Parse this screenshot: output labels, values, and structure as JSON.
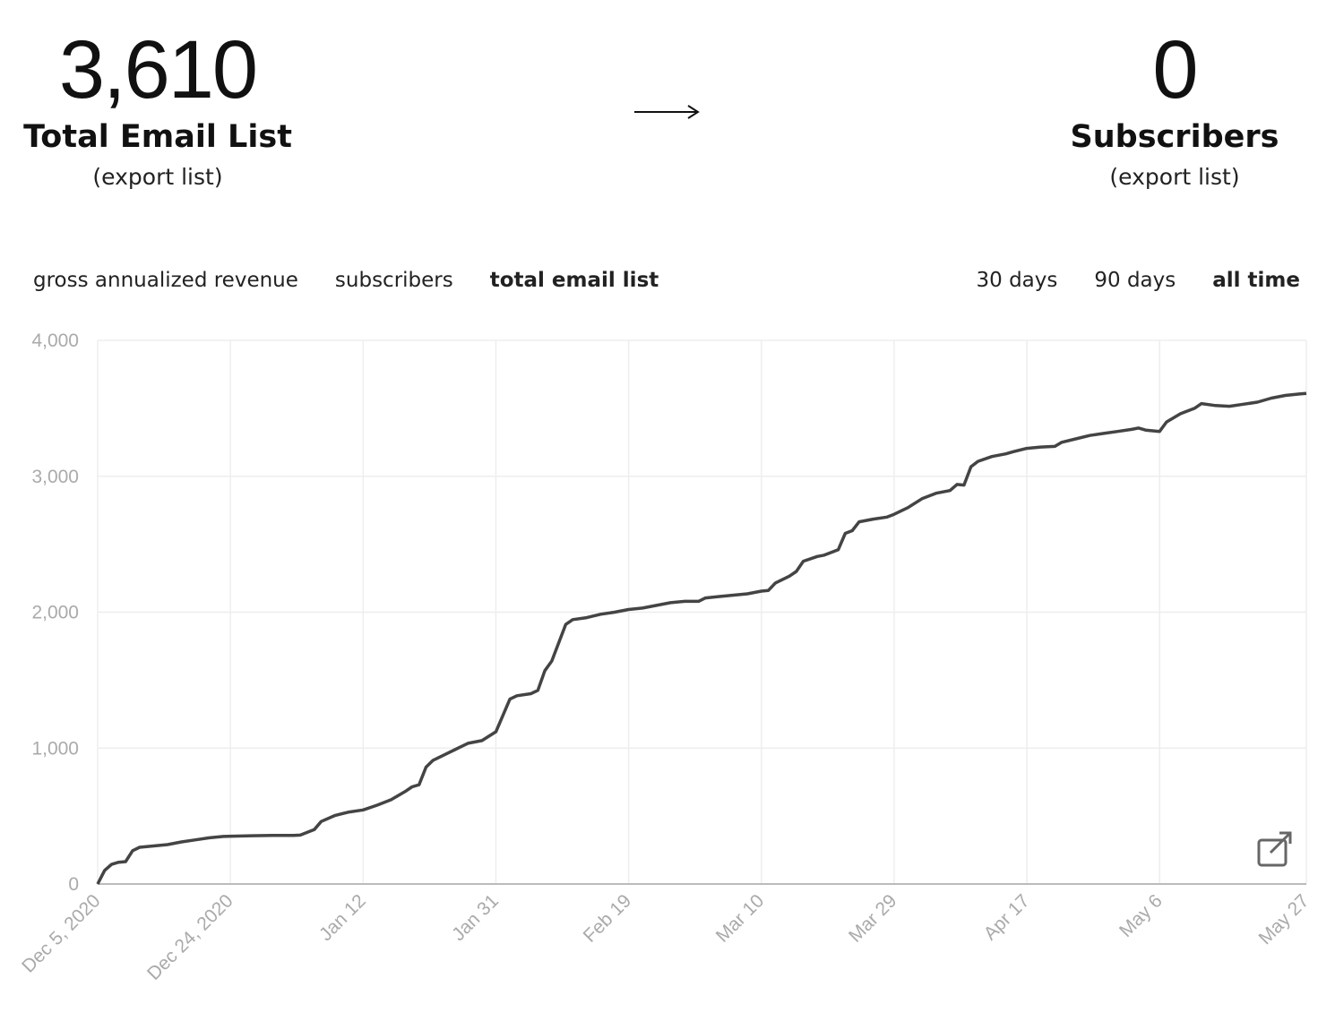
{
  "stats": [
    {
      "value": "3,610",
      "label": "Total Email List",
      "link": "(export list)"
    },
    {
      "value": "0",
      "label": "Subscribers",
      "link": "(export list)"
    }
  ],
  "metric_tabs": [
    "gross annualized revenue",
    "subscribers",
    "total email list"
  ],
  "active_metric": 2,
  "range_tabs": [
    "30 days",
    "90 days",
    "all time"
  ],
  "active_range": 2,
  "chart_data": {
    "type": "line",
    "color": "#444444",
    "grid": true,
    "x": [
      "2020-12-05",
      "2020-12-06",
      "2020-12-07",
      "2020-12-08",
      "2020-12-09",
      "2020-12-10",
      "2020-12-11",
      "2020-12-13",
      "2020-12-15",
      "2020-12-17",
      "2020-12-19",
      "2020-12-21",
      "2020-12-23",
      "2020-12-27",
      "2020-12-30",
      "2021-01-02",
      "2021-01-03",
      "2021-01-05",
      "2021-01-06",
      "2021-01-08",
      "2021-01-10",
      "2021-01-12",
      "2021-01-14",
      "2021-01-16",
      "2021-01-18",
      "2021-01-19",
      "2021-01-20",
      "2021-01-21",
      "2021-01-22",
      "2021-01-24",
      "2021-01-26",
      "2021-01-27",
      "2021-01-29",
      "2021-01-31",
      "2021-02-01",
      "2021-02-02",
      "2021-02-03",
      "2021-02-05",
      "2021-02-06",
      "2021-02-07",
      "2021-02-08",
      "2021-02-10",
      "2021-02-11",
      "2021-02-13",
      "2021-02-15",
      "2021-02-17",
      "2021-02-19",
      "2021-02-21",
      "2021-02-23",
      "2021-02-25",
      "2021-02-27",
      "2021-03-01",
      "2021-03-02",
      "2021-03-04",
      "2021-03-06",
      "2021-03-08",
      "2021-03-10",
      "2021-03-11",
      "2021-03-12",
      "2021-03-14",
      "2021-03-15",
      "2021-03-16",
      "2021-03-18",
      "2021-03-19",
      "2021-03-21",
      "2021-03-22",
      "2021-03-23",
      "2021-03-24",
      "2021-03-26",
      "2021-03-28",
      "2021-03-29",
      "2021-03-31",
      "2021-04-02",
      "2021-04-04",
      "2021-04-06",
      "2021-04-07",
      "2021-04-08",
      "2021-04-09",
      "2021-04-10",
      "2021-04-12",
      "2021-04-14",
      "2021-04-15",
      "2021-04-17",
      "2021-04-19",
      "2021-04-21",
      "2021-04-22",
      "2021-04-24",
      "2021-04-26",
      "2021-04-28",
      "2021-04-30",
      "2021-05-02",
      "2021-05-03",
      "2021-05-04",
      "2021-05-06",
      "2021-05-07",
      "2021-05-09",
      "2021-05-11",
      "2021-05-12",
      "2021-05-14",
      "2021-05-16",
      "2021-05-18",
      "2021-05-20",
      "2021-05-22",
      "2021-05-24",
      "2021-05-26",
      "2021-05-27"
    ],
    "values": [
      0,
      100,
      145,
      160,
      165,
      245,
      270,
      280,
      290,
      310,
      325,
      340,
      350,
      355,
      358,
      358,
      360,
      400,
      460,
      505,
      530,
      545,
      580,
      620,
      680,
      715,
      730,
      860,
      910,
      960,
      1010,
      1035,
      1055,
      1120,
      1240,
      1360,
      1385,
      1400,
      1425,
      1570,
      1640,
      1910,
      1945,
      1960,
      1985,
      2000,
      2020,
      2030,
      2050,
      2070,
      2080,
      2080,
      2105,
      2115,
      2125,
      2135,
      2155,
      2160,
      2215,
      2265,
      2300,
      2375,
      2410,
      2420,
      2460,
      2580,
      2600,
      2665,
      2685,
      2700,
      2720,
      2770,
      2835,
      2875,
      2895,
      2940,
      2935,
      3070,
      3110,
      3145,
      3165,
      3180,
      3205,
      3215,
      3220,
      3250,
      3275,
      3300,
      3315,
      3330,
      3345,
      3355,
      3340,
      3330,
      3400,
      3460,
      3500,
      3535,
      3520,
      3515,
      3530,
      3545,
      3575,
      3595,
      3605,
      3610
    ],
    "xlim": [
      "2020-12-05",
      "2021-05-27"
    ],
    "xticks": [
      {
        "value": "2020-12-05",
        "label": "Dec 5, 2020"
      },
      {
        "value": "2020-12-24",
        "label": "Dec 24, 2020"
      },
      {
        "value": "2021-01-12",
        "label": "Jan 12"
      },
      {
        "value": "2021-01-31",
        "label": "Jan 31"
      },
      {
        "value": "2021-02-19",
        "label": "Feb 19"
      },
      {
        "value": "2021-03-10",
        "label": "Mar 10"
      },
      {
        "value": "2021-03-29",
        "label": "Mar 29"
      },
      {
        "value": "2021-04-17",
        "label": "Apr 17"
      },
      {
        "value": "2021-05-06",
        "label": "May 6"
      },
      {
        "value": "2021-05-27",
        "label": "May 27"
      }
    ],
    "ylim": [
      0,
      4000
    ],
    "yticks": [
      0,
      {
        "value": 1000,
        "label": "1,000"
      },
      {
        "value": 2000,
        "label": "2,000"
      },
      {
        "value": 3000,
        "label": "3,000"
      },
      {
        "value": 4000,
        "label": "4,000"
      }
    ]
  }
}
